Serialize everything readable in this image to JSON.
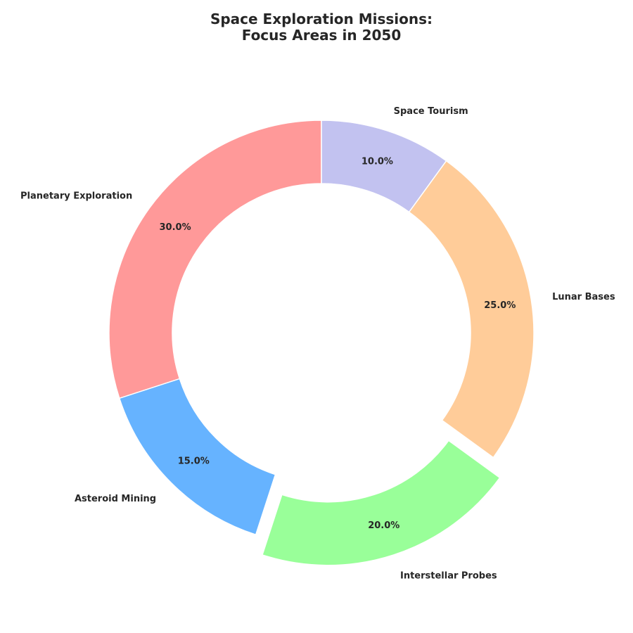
{
  "chart_data": {
    "type": "pie",
    "style": "donut",
    "title": [
      "Space Exploration Missions:",
      "Focus Areas in 2050"
    ],
    "start_angle_deg": 90,
    "direction": "counterclockwise",
    "slices": [
      {
        "label": "Planetary Exploration",
        "value": 30.0,
        "pct_label": "30.0%",
        "color": "#FF9999",
        "exploded": false
      },
      {
        "label": "Asteroid Mining",
        "value": 15.0,
        "pct_label": "15.0%",
        "color": "#66B3FF",
        "exploded": false
      },
      {
        "label": "Interstellar Probes",
        "value": 20.0,
        "pct_label": "20.0%",
        "color": "#99FF99",
        "exploded": true
      },
      {
        "label": "Lunar Bases",
        "value": 25.0,
        "pct_label": "25.0%",
        "color": "#FFCC99",
        "exploded": false
      },
      {
        "label": "Space Tourism",
        "value": 10.0,
        "pct_label": "10.0%",
        "color": "#C2C2F0",
        "exploded": false
      }
    ],
    "legend": "none",
    "grid": false
  }
}
